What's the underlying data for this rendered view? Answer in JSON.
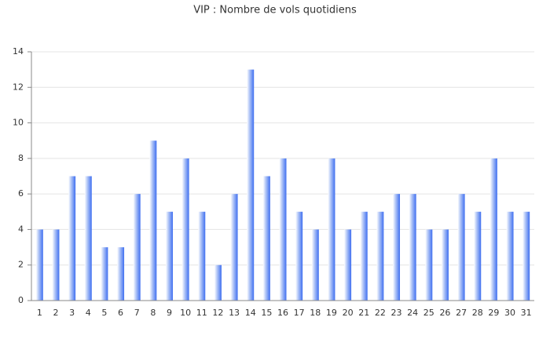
{
  "chart_data": {
    "type": "bar",
    "title": "VIP : Nombre de vols quotidiens",
    "categories": [
      "1",
      "2",
      "3",
      "4",
      "5",
      "6",
      "7",
      "8",
      "9",
      "10",
      "11",
      "12",
      "13",
      "14",
      "15",
      "16",
      "17",
      "18",
      "19",
      "20",
      "21",
      "22",
      "23",
      "24",
      "25",
      "26",
      "27",
      "28",
      "29",
      "30",
      "31"
    ],
    "values": [
      4,
      4,
      7,
      7,
      3,
      3,
      6,
      9,
      5,
      8,
      5,
      2,
      6,
      13,
      7,
      8,
      5,
      4,
      8,
      4,
      5,
      5,
      6,
      6,
      4,
      4,
      6,
      5,
      8,
      5,
      5
    ],
    "color": "#3f6ff0",
    "ylim": [
      0,
      14
    ],
    "yticks": [
      0,
      2,
      4,
      6,
      8,
      10,
      12,
      14
    ],
    "grid": true
  }
}
